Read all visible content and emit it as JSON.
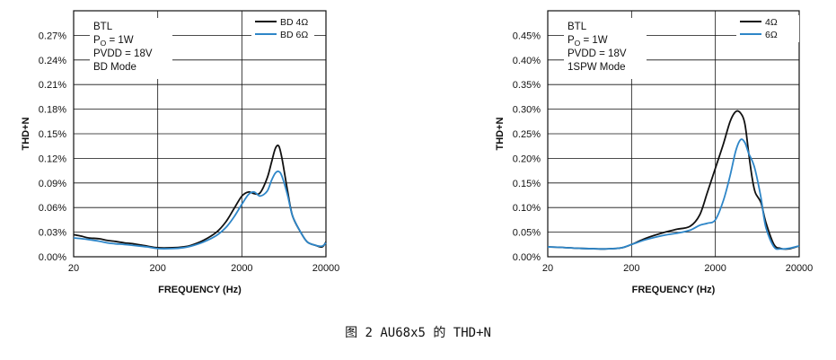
{
  "figure_caption": "图 2  AU68x5 的 THD+N",
  "colors": {
    "black_series": "#111111",
    "blue_series": "#2e86c8",
    "grid": "#111111"
  },
  "chart_data": [
    {
      "type": "line",
      "title": "",
      "xlabel": "FREQUENCY (Hz)",
      "ylabel": "THD+N",
      "x_scale": "log",
      "xlim": [
        20,
        20000
      ],
      "ylim": [
        0,
        0.3
      ],
      "x_ticks": [
        20,
        200,
        2000,
        20000
      ],
      "x_tick_labels": [
        "20",
        "200",
        "2000",
        "20000"
      ],
      "y_ticks": [
        0,
        0.03,
        0.06,
        0.09,
        0.12,
        0.15,
        0.18,
        0.21,
        0.24,
        0.27
      ],
      "y_tick_labels": [
        "0.00%",
        "0.03%",
        "0.06%",
        "0.09%",
        "0.12%",
        "0.15%",
        "0.18%",
        "0.21%",
        "0.24%",
        "0.27%"
      ],
      "grid": true,
      "annotation": {
        "lines": [
          "BTL",
          "P",
          "PVDD = 18V",
          "BD Mode"
        ],
        "po_sub": "O",
        "po_suffix": " = 1W"
      },
      "legend_position": "top-right",
      "series": [
        {
          "name": "BD 4Ω",
          "color": "#111111",
          "x": [
            20,
            25,
            30,
            40,
            50,
            60,
            80,
            100,
            150,
            200,
            300,
            400,
            500,
            700,
            1000,
            1300,
            1600,
            2000,
            2400,
            2800,
            3300,
            4000,
            4500,
            5000,
            5500,
            6000,
            7000,
            8000,
            10000,
            12000,
            15000,
            18000,
            20000
          ],
          "y": [
            0.027,
            0.025,
            0.023,
            0.022,
            0.02,
            0.019,
            0.017,
            0.016,
            0.013,
            0.011,
            0.011,
            0.012,
            0.014,
            0.02,
            0.03,
            0.043,
            0.058,
            0.074,
            0.079,
            0.077,
            0.078,
            0.096,
            0.115,
            0.132,
            0.135,
            0.12,
            0.08,
            0.05,
            0.03,
            0.018,
            0.014,
            0.012,
            0.018
          ]
        },
        {
          "name": "BD 6Ω",
          "color": "#2e86c8",
          "x": [
            20,
            25,
            30,
            40,
            50,
            60,
            80,
            100,
            150,
            200,
            300,
            400,
            500,
            700,
            1000,
            1300,
            1600,
            2000,
            2400,
            2800,
            3300,
            4000,
            4500,
            5000,
            5500,
            6000,
            7000,
            8000,
            10000,
            12000,
            15000,
            18000,
            20000
          ],
          "y": [
            0.023,
            0.022,
            0.021,
            0.019,
            0.017,
            0.016,
            0.015,
            0.014,
            0.012,
            0.01,
            0.01,
            0.011,
            0.013,
            0.018,
            0.026,
            0.036,
            0.048,
            0.064,
            0.076,
            0.079,
            0.074,
            0.08,
            0.093,
            0.102,
            0.104,
            0.098,
            0.075,
            0.05,
            0.03,
            0.018,
            0.014,
            0.013,
            0.017
          ]
        }
      ]
    },
    {
      "type": "line",
      "title": "",
      "xlabel": "FREQUENCY (Hz)",
      "ylabel": "THD+N",
      "x_scale": "log",
      "xlim": [
        20,
        20000
      ],
      "ylim": [
        0,
        0.5
      ],
      "x_ticks": [
        20,
        200,
        2000,
        20000
      ],
      "x_tick_labels": [
        "20",
        "200",
        "2000",
        "20000"
      ],
      "y_ticks": [
        0,
        0.05,
        0.1,
        0.15,
        0.2,
        0.25,
        0.3,
        0.35,
        0.4,
        0.45
      ],
      "y_tick_labels": [
        "0.00%",
        "0.05%",
        "0.10%",
        "0.15%",
        "0.20%",
        "0.25%",
        "0.30%",
        "0.35%",
        "0.40%",
        "0.45%"
      ],
      "grid": true,
      "annotation": {
        "lines": [
          "BTL",
          "P",
          "PVDD = 18V",
          "1SPW Mode"
        ],
        "po_sub": "O",
        "po_suffix": " = 1W"
      },
      "legend_position": "top-right",
      "series": [
        {
          "name": "4Ω",
          "color": "#111111",
          "x": [
            20,
            30,
            50,
            80,
            100,
            150,
            200,
            300,
            500,
            700,
            1000,
            1300,
            1600,
            2000,
            2500,
            3000,
            3500,
            4000,
            4500,
            5000,
            5500,
            6000,
            7000,
            8000,
            10000,
            12000,
            15000,
            20000
          ],
          "y": [
            0.02,
            0.019,
            0.017,
            0.016,
            0.016,
            0.018,
            0.025,
            0.038,
            0.05,
            0.056,
            0.062,
            0.085,
            0.13,
            0.18,
            0.23,
            0.275,
            0.295,
            0.292,
            0.27,
            0.21,
            0.16,
            0.13,
            0.11,
            0.07,
            0.025,
            0.017,
            0.016,
            0.022
          ]
        },
        {
          "name": "6Ω",
          "color": "#2e86c8",
          "x": [
            20,
            30,
            50,
            80,
            100,
            150,
            200,
            300,
            500,
            700,
            1000,
            1300,
            1600,
            2000,
            2500,
            3000,
            3500,
            4000,
            4500,
            5000,
            5500,
            6000,
            7000,
            8000,
            10000,
            12000,
            15000,
            20000
          ],
          "y": [
            0.02,
            0.019,
            0.017,
            0.016,
            0.016,
            0.018,
            0.025,
            0.035,
            0.044,
            0.048,
            0.054,
            0.064,
            0.068,
            0.075,
            0.115,
            0.165,
            0.215,
            0.238,
            0.232,
            0.21,
            0.195,
            0.175,
            0.12,
            0.06,
            0.02,
            0.016,
            0.017,
            0.022
          ]
        }
      ]
    }
  ]
}
